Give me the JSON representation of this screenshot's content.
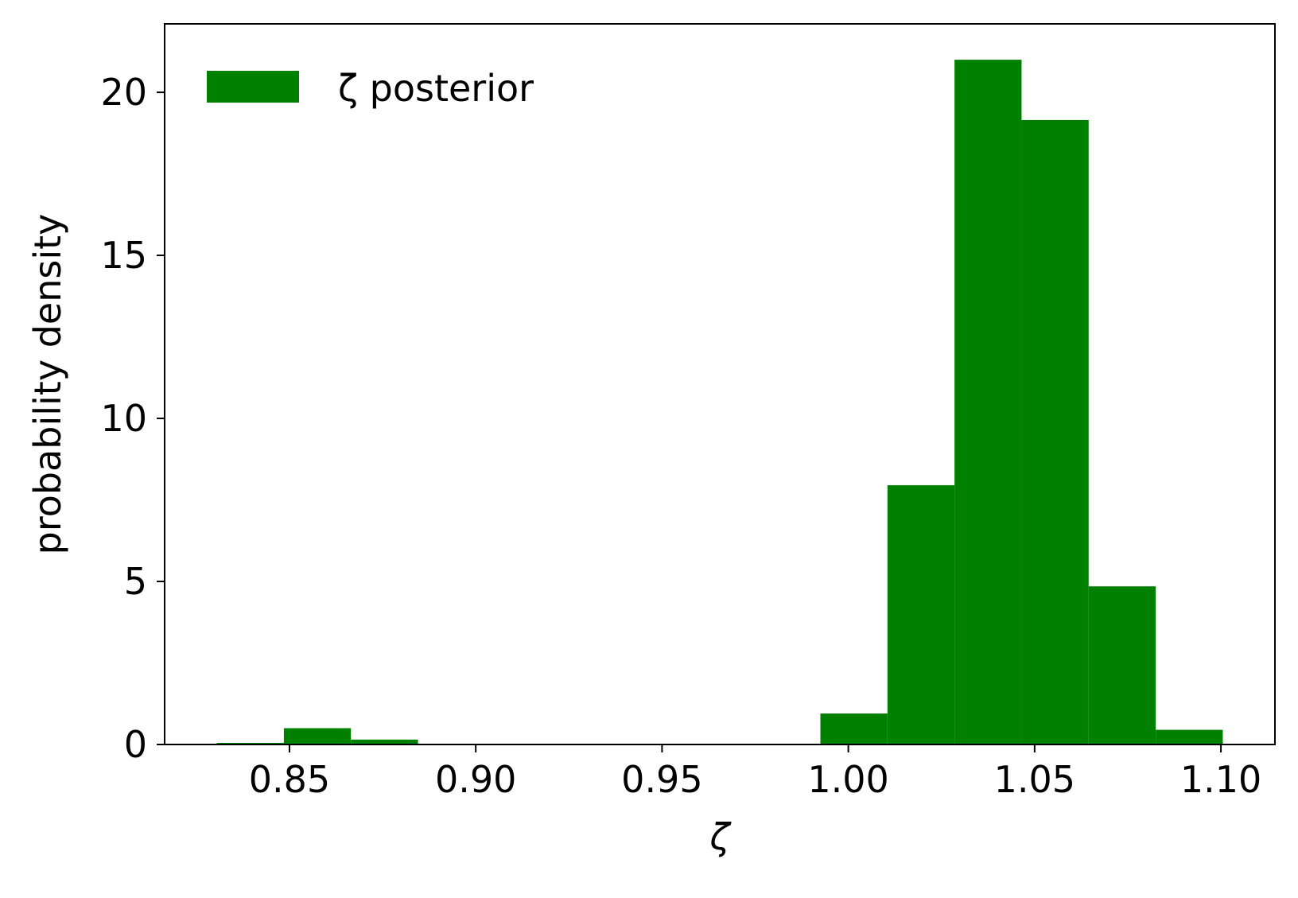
{
  "chart_data": {
    "type": "bar",
    "subtype": "histogram",
    "bin_edges": [
      0.8305,
      0.8485,
      0.8665,
      0.8845,
      0.9025,
      0.9205,
      0.9385,
      0.9565,
      0.9745,
      0.9925,
      1.0105,
      1.0285,
      1.0465,
      1.0645,
      1.0825,
      1.1005
    ],
    "values": [
      0.05,
      0.5,
      0.15,
      0,
      0,
      0,
      0,
      0,
      0,
      0.95,
      7.95,
      21.0,
      19.15,
      4.85,
      0.45
    ],
    "xlim": [
      0.8165,
      1.1145
    ],
    "ylim": [
      0,
      22.1
    ],
    "xticks": [
      0.85,
      0.9,
      0.95,
      1.0,
      1.05,
      1.1
    ],
    "xtick_labels": [
      "0.85",
      "0.90",
      "0.95",
      "1.00",
      "1.05",
      "1.10"
    ],
    "yticks": [
      0,
      5,
      10,
      15,
      20
    ],
    "ytick_labels": [
      "0",
      "5",
      "10",
      "15",
      "20"
    ],
    "xlabel": "ζ",
    "ylabel": "probability density",
    "series": [
      {
        "name": "ζ posterior",
        "color": "#008000"
      }
    ],
    "legend_position": "upper-left",
    "grid": false
  }
}
